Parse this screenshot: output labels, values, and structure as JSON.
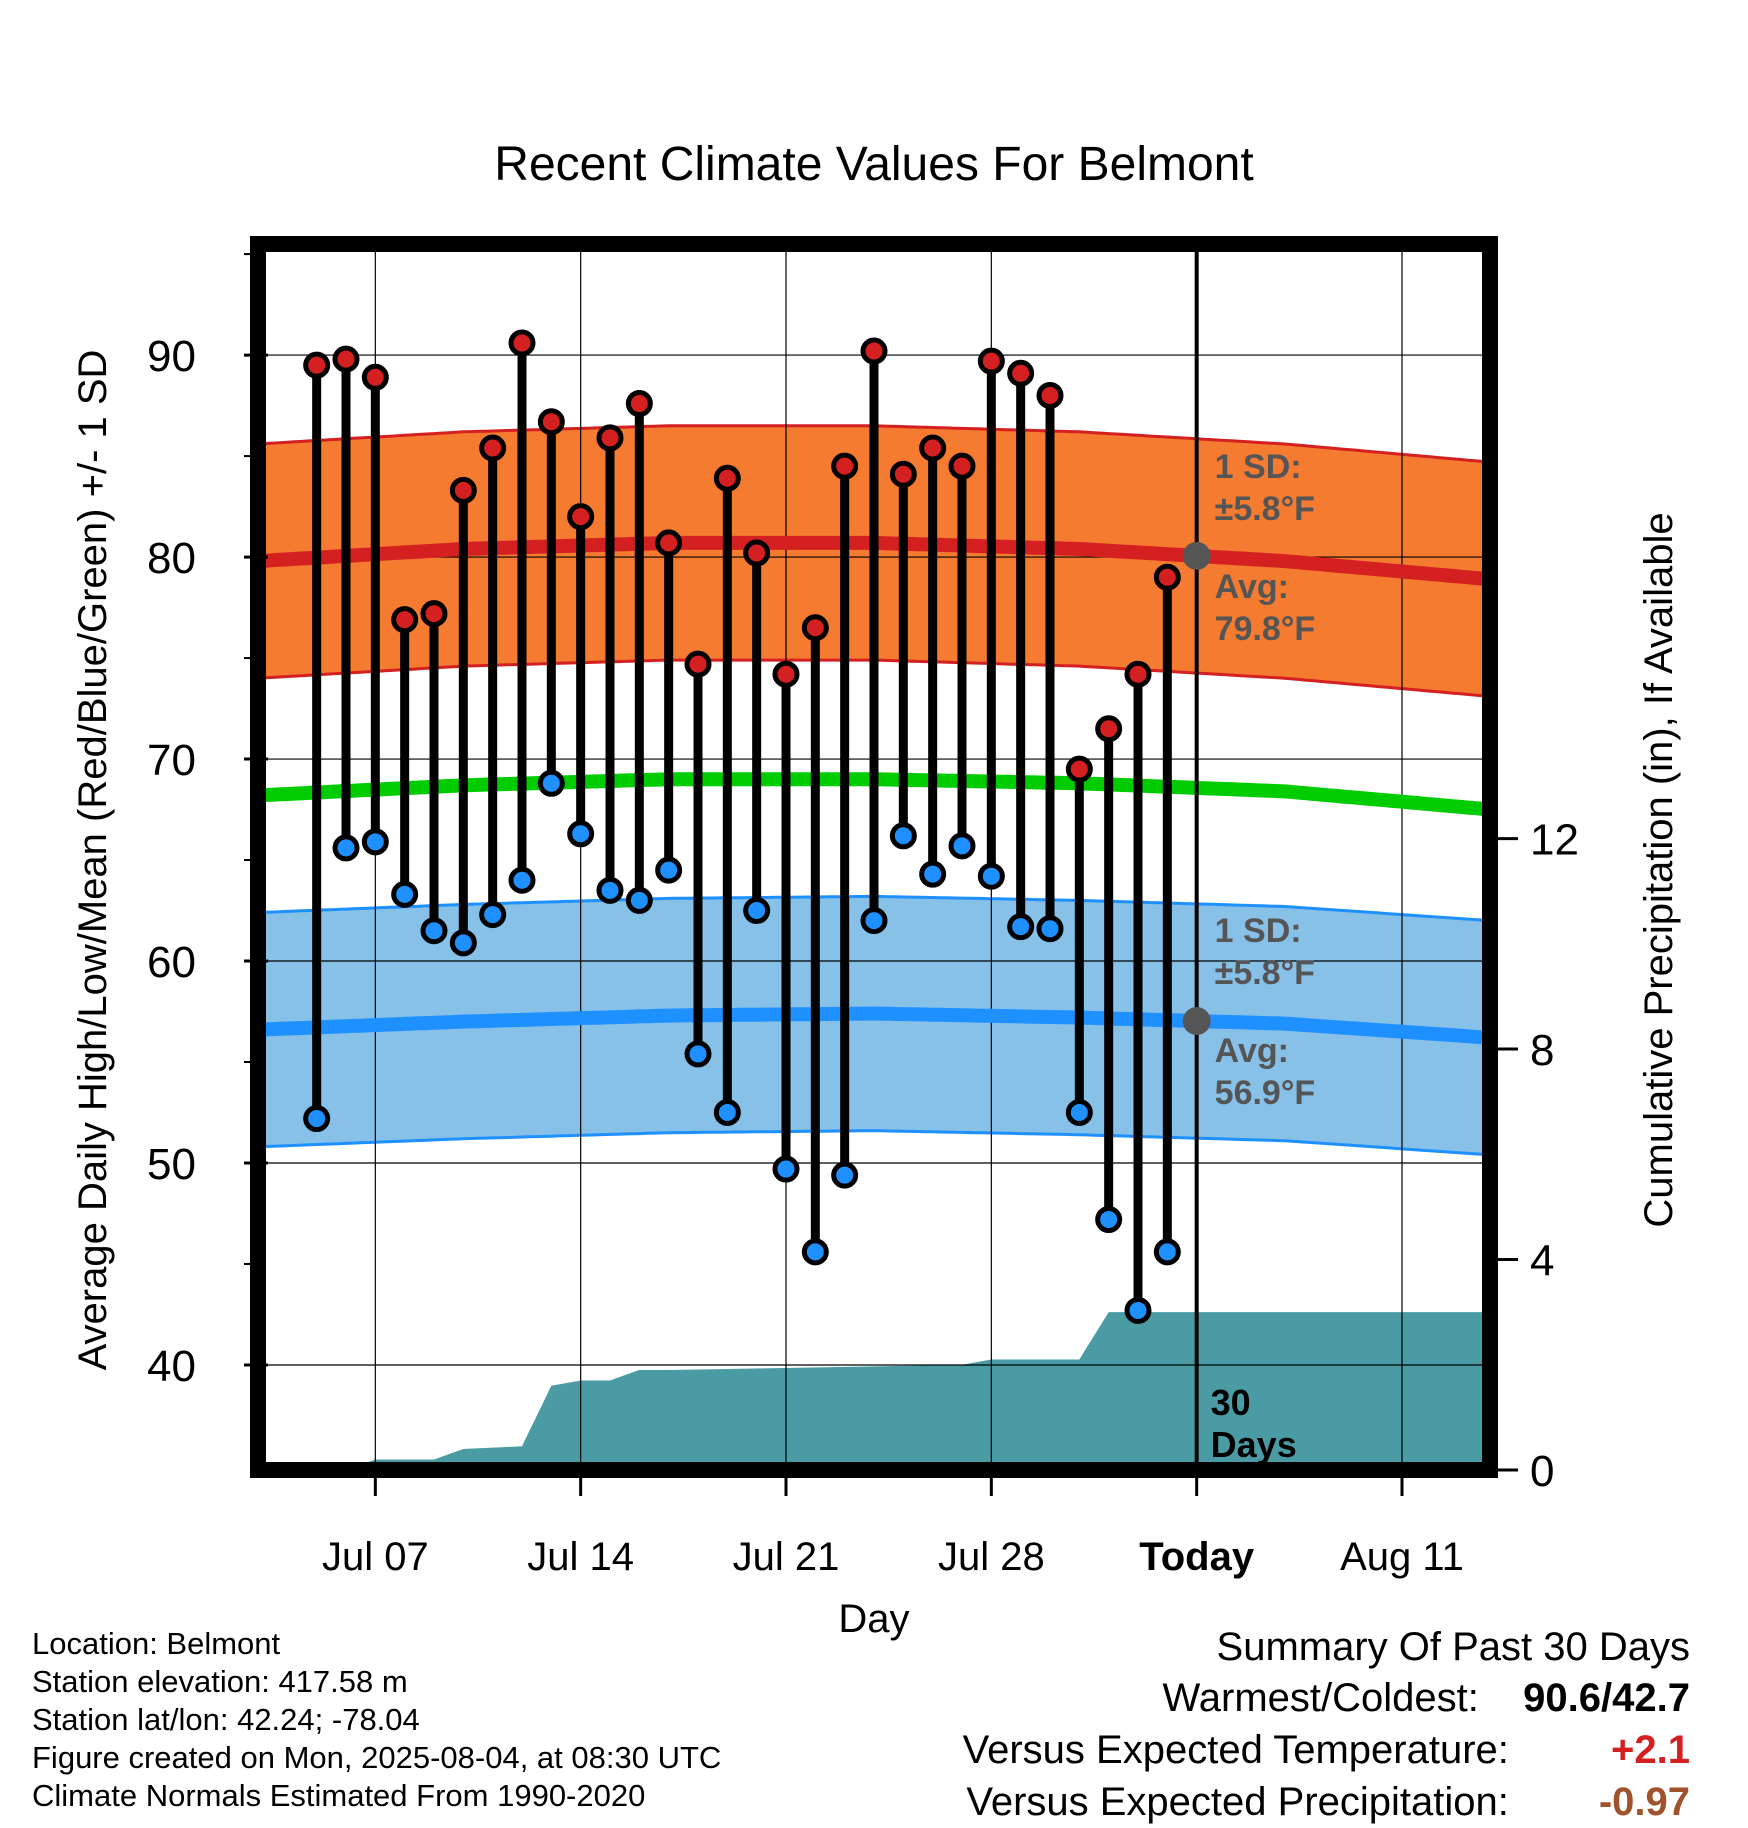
{
  "chart_data": {
    "type": "line",
    "title": "Recent Climate Values For Belmont",
    "xlabel": "Day",
    "ylabel": "Average Daily High/Low/Mean (Red/Blue/Green) +/- 1 SD",
    "y2label": "Cumulative Precipitation (in), If Available",
    "xlim": [
      "2025-07-03",
      "2025-08-14"
    ],
    "ylim": [
      34.8,
      95.5
    ],
    "y2lim": [
      0,
      23.3
    ],
    "yticks": [
      "40",
      "50",
      "60",
      "70",
      "80",
      "90"
    ],
    "y2ticks": [
      "0",
      "4",
      "8",
      "12"
    ],
    "xticks": [
      {
        "date": "2025-07-07",
        "label": "Jul 07"
      },
      {
        "date": "2025-07-14",
        "label": "Jul 14"
      },
      {
        "date": "2025-07-21",
        "label": "Jul 21"
      },
      {
        "date": "2025-07-28",
        "label": "Jul 28"
      },
      {
        "date": "2025-08-04",
        "label": "Today"
      },
      {
        "date": "2025-08-11",
        "label": "Aug 11"
      }
    ],
    "grid": true,
    "dates": [
      "2025-07-05",
      "2025-07-06",
      "2025-07-07",
      "2025-07-08",
      "2025-07-09",
      "2025-07-10",
      "2025-07-11",
      "2025-07-12",
      "2025-07-13",
      "2025-07-14",
      "2025-07-15",
      "2025-07-16",
      "2025-07-17",
      "2025-07-18",
      "2025-07-19",
      "2025-07-20",
      "2025-07-21",
      "2025-07-22",
      "2025-07-23",
      "2025-07-24",
      "2025-07-25",
      "2025-07-26",
      "2025-07-27",
      "2025-07-28",
      "2025-07-29",
      "2025-07-30",
      "2025-07-31",
      "2025-08-01",
      "2025-08-02",
      "2025-08-03"
    ],
    "highs": [
      89.5,
      89.8,
      88.9,
      76.9,
      77.2,
      83.3,
      85.4,
      90.6,
      86.7,
      82.0,
      85.9,
      87.6,
      80.7,
      74.7,
      83.9,
      80.2,
      74.2,
      76.5,
      84.5,
      90.2,
      84.1,
      85.4,
      84.5,
      89.7,
      89.1,
      88.0,
      69.5,
      71.5,
      74.2,
      79.0
    ],
    "lows": [
      52.2,
      65.6,
      65.9,
      63.3,
      61.5,
      60.9,
      62.3,
      64.0,
      68.8,
      66.3,
      63.5,
      63.0,
      64.5,
      55.4,
      52.5,
      62.5,
      49.7,
      45.6,
      49.4,
      62.0,
      66.2,
      64.3,
      65.7,
      64.2,
      61.7,
      61.6,
      52.5,
      47.2,
      42.7,
      45.6
    ],
    "normals": {
      "dates": [
        "2025-07-03",
        "2025-07-10",
        "2025-07-17",
        "2025-07-24",
        "2025-07-31",
        "2025-08-07",
        "2025-08-14"
      ],
      "high_avg": [
        79.8,
        80.4,
        80.7,
        80.7,
        80.4,
        79.8,
        78.9
      ],
      "low_avg": [
        56.6,
        57.0,
        57.3,
        57.4,
        57.2,
        56.9,
        56.2
      ],
      "mean_avg": [
        68.2,
        68.7,
        69.0,
        69.0,
        68.8,
        68.4,
        67.5
      ],
      "sd": 5.8
    },
    "precip": {
      "dates": [
        "2025-07-05",
        "2025-07-06",
        "2025-07-07",
        "2025-07-09",
        "2025-07-10",
        "2025-07-12",
        "2025-07-13",
        "2025-07-14",
        "2025-07-15",
        "2025-07-16",
        "2025-07-17",
        "2025-07-27",
        "2025-07-28",
        "2025-07-31",
        "2025-08-01",
        "2025-08-14"
      ],
      "values": [
        0,
        0,
        0.2,
        0.2,
        0.4,
        0.45,
        1.6,
        1.7,
        1.7,
        1.9,
        1.9,
        2.0,
        2.1,
        2.1,
        3.0,
        3.0
      ]
    },
    "annotations": {
      "high_sd_label": "1 SD:",
      "high_sd_value": "±5.8°F",
      "high_avg_label": "Avg:",
      "high_avg_value": "79.8°F",
      "low_sd_label": "1 SD:",
      "low_sd_value": "±5.8°F",
      "low_avg_label": "Avg:",
      "low_avg_value": "56.9°F",
      "days_num": "30",
      "days_word": "Days"
    },
    "colors": {
      "high_band": "#F47B30",
      "high_line": "#D42020",
      "low_band": "#87C1E8",
      "low_line": "#1E90FF",
      "mean_line": "#00CC00",
      "precip": "#4A9BA3",
      "high_marker": "#D42020",
      "low_marker": "#1E90FF",
      "avg_marker": "#555555"
    }
  },
  "footer": {
    "location": "Location: Belmont",
    "elevation": "Station elevation: 417.58 m",
    "latlon": "Station lat/lon: 42.24; -78.04",
    "created": "Figure created on Mon, 2025-08-04, at 08:30 UTC",
    "normals": "Climate Normals Estimated From 1990-2020"
  },
  "summary": {
    "title": "Summary Of Past 30 Days",
    "warm_cold_label": "Warmest/Coldest:",
    "warm_cold_value": "90.6/42.7",
    "temp_label": "Versus Expected Temperature:",
    "temp_value": "+2.1",
    "temp_color": "#D42020",
    "precip_label": "Versus Expected Precipitation:",
    "precip_value": "-0.97",
    "precip_color": "#A0522D"
  }
}
